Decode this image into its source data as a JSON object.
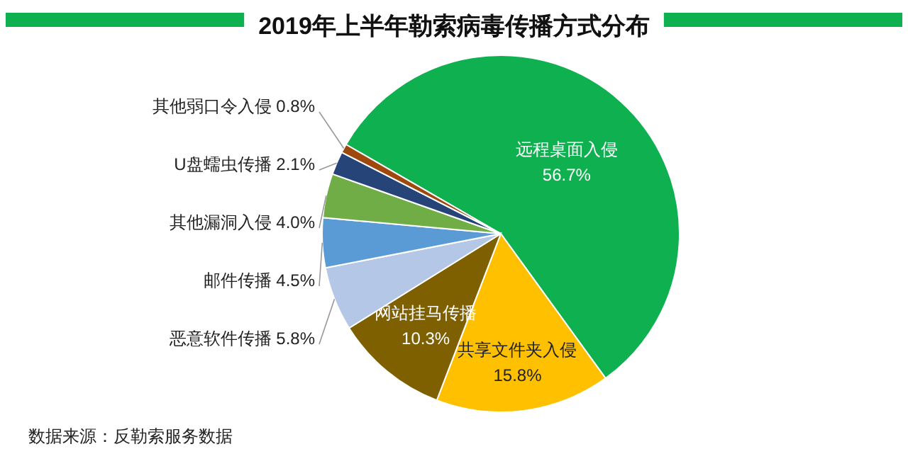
{
  "chart_data": {
    "type": "pie",
    "title": "2019年上半年勒索病毒传播方式分布",
    "categories": [
      "远程桌面入侵",
      "共享文件夹入侵",
      "网站挂马传播",
      "恶意软件传播",
      "邮件传播",
      "其他漏洞入侵",
      "U盘蠕虫传播",
      "其他弱口令入侵"
    ],
    "values": [
      56.7,
      15.8,
      10.3,
      5.8,
      4.5,
      4.0,
      2.1,
      0.8
    ],
    "colors": [
      "#0fb050",
      "#ffc000",
      "#7f6000",
      "#b4c7e7",
      "#5b9bd5",
      "#70ad47",
      "#264478",
      "#9e480e"
    ],
    "value_labels": [
      "56.7%",
      "15.8%",
      "10.3%",
      "5.8%",
      "4.5%",
      "4.0%",
      "2.1%",
      "0.8%"
    ],
    "annotations": [
      "数据来源：反勒索服务数据"
    ]
  }
}
